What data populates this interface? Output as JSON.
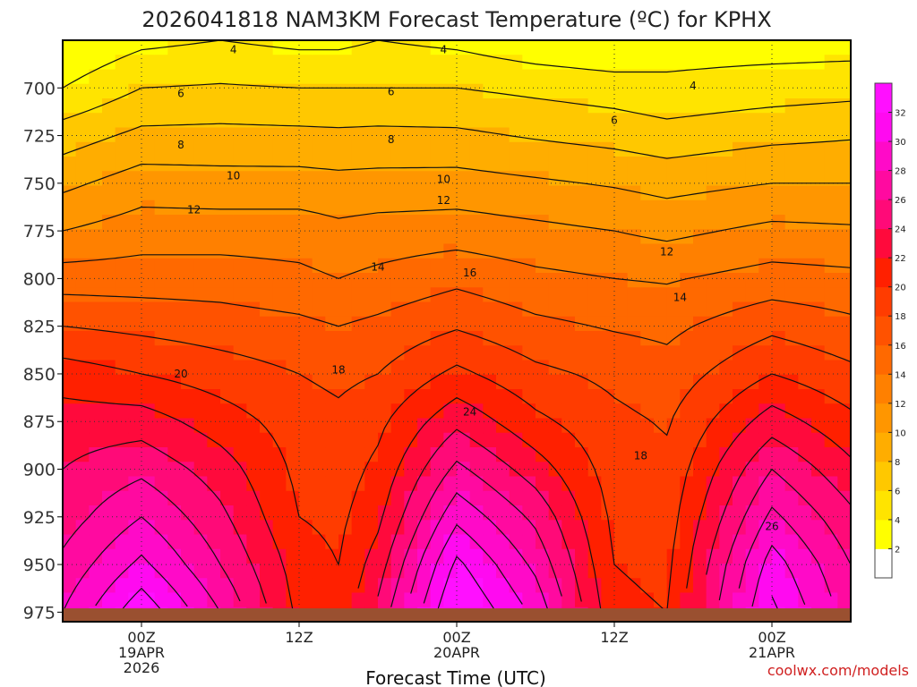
{
  "chart_data": {
    "type": "heatmap",
    "title": "2026041818 NAM3KM Forecast Temperature (ºC) for KPHX",
    "xlabel": "Forecast Time (UTC)",
    "ylabel": "",
    "credit": "coolwx.com/models",
    "x_ticks": [
      {
        "hour": 6,
        "lines": [
          "00Z",
          "19APR",
          "2026"
        ]
      },
      {
        "hour": 18,
        "lines": [
          "12Z"
        ]
      },
      {
        "hour": 30,
        "lines": [
          "00Z",
          "20APR"
        ]
      },
      {
        "hour": 42,
        "lines": [
          "12Z"
        ]
      },
      {
        "hour": 54,
        "lines": [
          "00Z",
          "21APR"
        ]
      }
    ],
    "xlim": [
      0,
      60
    ],
    "y_ticks": [
      700,
      725,
      750,
      775,
      800,
      825,
      850,
      875,
      900,
      925,
      950,
      975
    ],
    "ylim": [
      675,
      980
    ],
    "ground_level_hPa": 973,
    "colorbar": {
      "ticks": [
        2,
        4,
        6,
        8,
        10,
        12,
        14,
        16,
        18,
        20,
        22,
        24,
        26,
        28,
        30,
        32
      ],
      "colors": [
        "#ffffff",
        "#ffff00",
        "#ffe400",
        "#ffc800",
        "#ffad00",
        "#ff9600",
        "#ff8000",
        "#ff6900",
        "#ff5200",
        "#ff3c00",
        "#ff2000",
        "#ff0a3c",
        "#ff0a78",
        "#ff0aa0",
        "#ff0ac8",
        "#ff0af0",
        "#ff10ff"
      ]
    },
    "contour_levels": [
      4,
      6,
      8,
      10,
      12,
      14,
      16,
      18,
      20,
      22,
      24,
      26,
      28,
      30,
      32
    ],
    "contour_labels": [
      {
        "level": 4,
        "hour": 13,
        "p": 680
      },
      {
        "level": 4,
        "hour": 29,
        "p": 680
      },
      {
        "level": 4,
        "hour": 48,
        "p": 699
      },
      {
        "level": 6,
        "hour": 9,
        "p": 703
      },
      {
        "level": 6,
        "hour": 25,
        "p": 702
      },
      {
        "level": 6,
        "hour": 42,
        "p": 717
      },
      {
        "level": 8,
        "hour": 9,
        "p": 730
      },
      {
        "level": 8,
        "hour": 25,
        "p": 727
      },
      {
        "level": 10,
        "hour": 13,
        "p": 746
      },
      {
        "level": 10,
        "hour": 29,
        "p": 748
      },
      {
        "level": 12,
        "hour": 10,
        "p": 764
      },
      {
        "level": 12,
        "hour": 29,
        "p": 759
      },
      {
        "level": 12,
        "hour": 46,
        "p": 786
      },
      {
        "level": 14,
        "hour": 24,
        "p": 794
      },
      {
        "level": 14,
        "hour": 47,
        "p": 810
      },
      {
        "level": 16,
        "hour": 31,
        "p": 797
      },
      {
        "level": 18,
        "hour": 21,
        "p": 848
      },
      {
        "level": 18,
        "hour": 44,
        "p": 893
      },
      {
        "level": 20,
        "hour": 9,
        "p": 850
      },
      {
        "level": 24,
        "hour": 31,
        "p": 870
      },
      {
        "level": 26,
        "hour": 54,
        "p": 930
      }
    ],
    "pressure_levels_hPa": [
      675,
      700,
      725,
      750,
      775,
      800,
      825,
      850,
      875,
      900,
      925,
      950,
      975
    ],
    "profile_hours": [
      0,
      6,
      12,
      18,
      21,
      24,
      30,
      36,
      42,
      46,
      54,
      60
    ],
    "temperature_profiles_C": [
      [
        2,
        4,
        7,
        9.5,
        12,
        15,
        18,
        21,
        23,
        24,
        25,
        26.5,
        28
      ],
      [
        3.5,
        6,
        8.5,
        11,
        13,
        15,
        17.5,
        20,
        23,
        25.5,
        28,
        30.5,
        33.5
      ],
      [
        4,
        6.2,
        8.6,
        10.8,
        13,
        15,
        17,
        19,
        21,
        23,
        24.5,
        26,
        28
      ],
      [
        3.5,
        6,
        8.5,
        10.8,
        13,
        14.5,
        16.5,
        18,
        19,
        19.5,
        20,
        21,
        21.5
      ],
      [
        3.5,
        6,
        8.4,
        10.6,
        12.5,
        14,
        16,
        17.5,
        18.5,
        19,
        19.5,
        20,
        20.5
      ],
      [
        4,
        6,
        8.5,
        10.7,
        12.8,
        14.5,
        16.5,
        18,
        19.5,
        20.5,
        21.5,
        23,
        24.5
      ],
      [
        3.5,
        6,
        8.4,
        10.8,
        13,
        15.5,
        17.8,
        20.5,
        23.5,
        26.5,
        29.5,
        32.5,
        34.5
      ],
      [
        2.5,
        5.5,
        7.8,
        10.3,
        12.5,
        14.5,
        16.5,
        18.5,
        20.5,
        23,
        25.5,
        27.5,
        29.5
      ],
      [
        2,
        5,
        7.3,
        9.8,
        12,
        14,
        15.8,
        17.5,
        18.5,
        19,
        19.5,
        20,
        20.5
      ],
      [
        3,
        4.5,
        6.8,
        9.3,
        11.5,
        13.8,
        15.5,
        16.8,
        17.8,
        18.5,
        19,
        19.5,
        20
      ],
      [
        3,
        5,
        7.5,
        10,
        12.5,
        14.8,
        17.5,
        20,
        23,
        26,
        28.5,
        31,
        32.5
      ],
      [
        3,
        5.3,
        7.8,
        10,
        12.3,
        14.5,
        16.5,
        18.5,
        20.5,
        22.5,
        24.5,
        26,
        27
      ]
    ]
  }
}
